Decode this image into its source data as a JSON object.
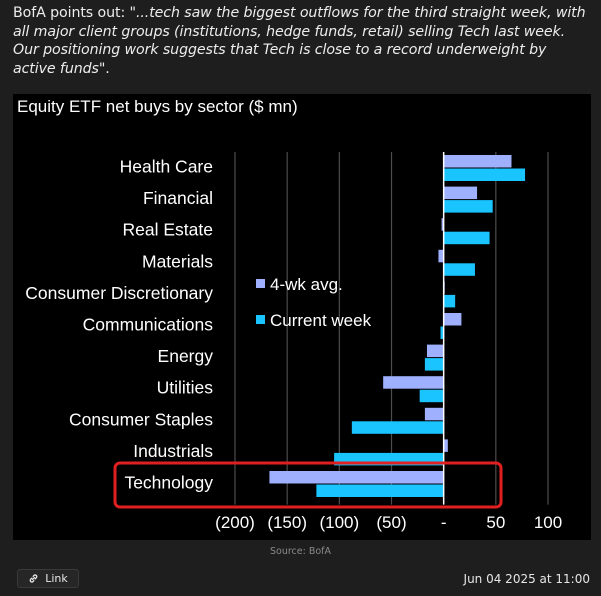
{
  "post": {
    "prefix": "BofA points out: \"",
    "quote_italic": "...tech saw the biggest outflows for the third straight week, with all major client groups (institutions, hedge funds, retail) selling Tech last week. Our positioning work suggests that Tech is close to a record underweight by active funds",
    "suffix": "\".",
    "source": "Source: BofA",
    "link_label": "Link",
    "timestamp": "Jun 04 2025 at 11:00"
  },
  "chart_data": {
    "type": "bar",
    "orientation": "horizontal",
    "title": "Equity ETF net buys by sector ($ mn)",
    "categories": [
      "Health Care",
      "Financial",
      "Real Estate",
      "Materials",
      "Consumer Discretionary",
      "Communications",
      "Energy",
      "Utilities",
      "Consumer Staples",
      "Industrials",
      "Technology"
    ],
    "series": [
      {
        "name": "4-wk avg.",
        "color": "#9fb0ff",
        "values": [
          65,
          32,
          -2,
          -5,
          1,
          17,
          -16,
          -58,
          -18,
          4,
          -167
        ]
      },
      {
        "name": "Current week",
        "color": "#19c4ff",
        "values": [
          78,
          47,
          44,
          30,
          11,
          -3,
          -18,
          -23,
          -88,
          -105,
          -122
        ]
      }
    ],
    "xlim": [
      -200,
      100
    ],
    "xticks": [
      -200,
      -150,
      -100,
      -50,
      0,
      50,
      100
    ],
    "xticklabels": [
      "(200)",
      "(150)",
      "(100)",
      "(50)",
      "-",
      "50",
      "100"
    ],
    "legend": "center",
    "grid": "vertical",
    "highlight": {
      "category": "Technology",
      "color": "#e02020"
    }
  }
}
